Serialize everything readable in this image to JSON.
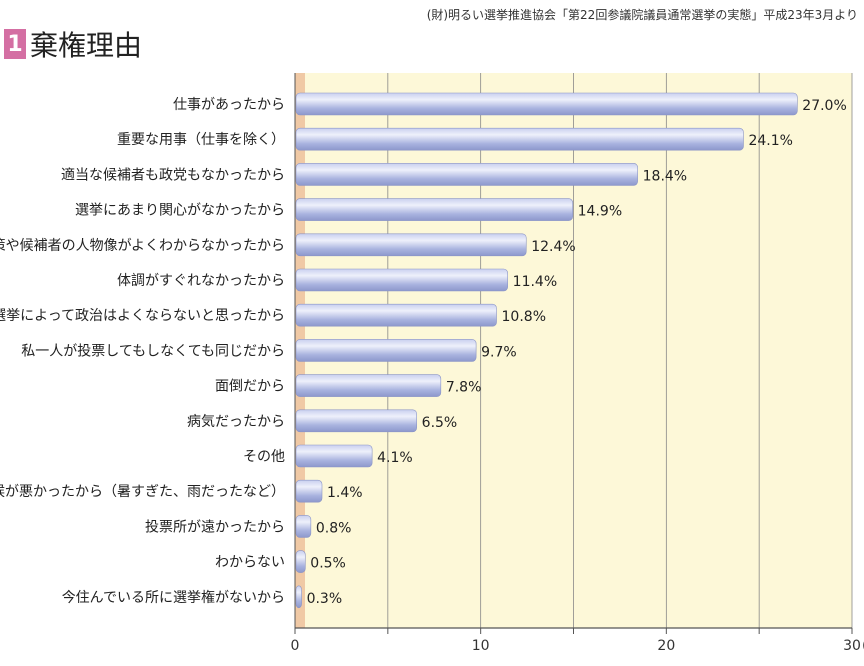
{
  "source": "(財)明るい選挙推進協会「第22回参議院議員通常選挙の実態」平成23年3月より",
  "header": {
    "number": "1",
    "title": "棄権理由"
  },
  "colors": {
    "plot_bg": "#fdf8d8",
    "bar": "#a9b4e0",
    "bar_highlight": "#e8ecfa",
    "strip": "#f0c9a5",
    "grid": "#888888"
  },
  "chart_data": {
    "type": "bar",
    "orientation": "horizontal",
    "categories": [
      "仕事があったから",
      "重要な用事（仕事を除く）",
      "適当な候補者も政党もなかったから",
      "選挙にあまり関心がなかったから",
      "政党の政策や候補者の人物像がよくわからなかったから",
      "体調がすぐれなかったから",
      "選挙によって政治はよくならないと思ったから",
      "私一人が投票してもしなくても同じだから",
      "面倒だから",
      "病気だったから",
      "その他",
      "天候が悪かったから（暑すぎた、雨だったなど）",
      "投票所が遠かったから",
      "わからない",
      "今住んでいる所に選挙権がないから"
    ],
    "values": [
      27.0,
      24.1,
      18.4,
      14.9,
      12.4,
      11.4,
      10.8,
      9.7,
      7.8,
      6.5,
      4.1,
      1.4,
      0.8,
      0.5,
      0.3
    ],
    "data_labels": [
      "27.0%",
      "24.1%",
      "18.4%",
      "14.9%",
      "12.4%",
      "11.4%",
      "10.8%",
      "9.7%",
      "7.8%",
      "6.5%",
      "4.1%",
      "1.4%",
      "0.8%",
      "0.5%",
      "0.3%"
    ],
    "xlim": [
      0,
      30
    ],
    "xticks": [
      "0",
      "10",
      "20",
      "30"
    ],
    "xunit": "(%)",
    "grid": true
  }
}
